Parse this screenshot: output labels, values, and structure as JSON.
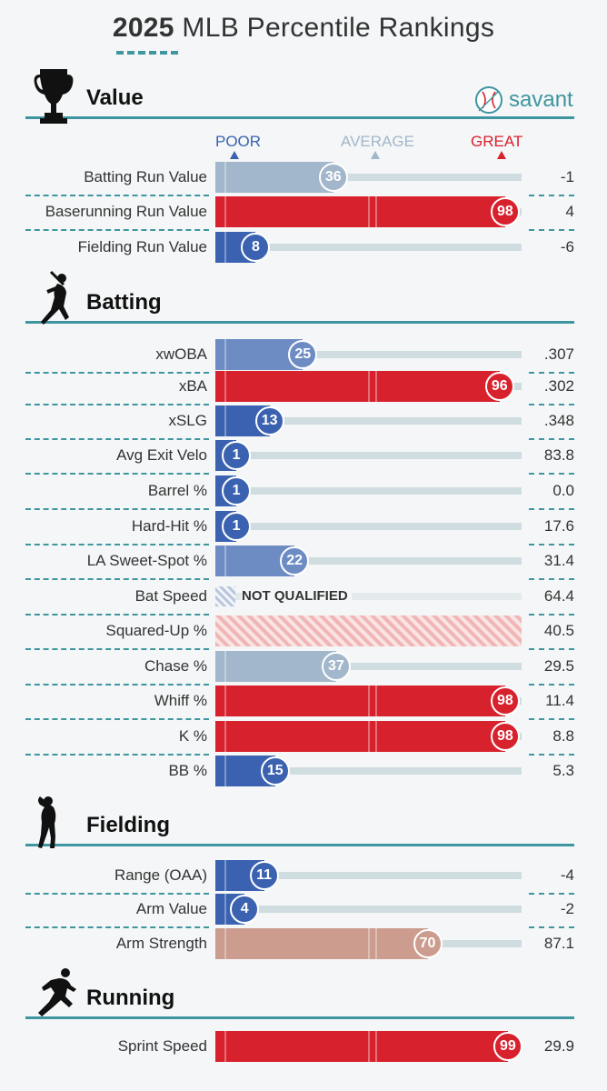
{
  "header": {
    "title_year": "2025",
    "title_rest": " MLB Percentile Rankings",
    "brand": "savant"
  },
  "scale": {
    "poor": "POOR",
    "average": "AVERAGE",
    "great": "GREAT"
  },
  "colors": {
    "accent": "#3f95a0",
    "great": "#d7222e",
    "poor": "#3a62b0",
    "below_avg_mid": "#6e8cc4",
    "near_avg": "#a2b7cb",
    "above_avg": "#cc9c8e",
    "track": "#cfdde0"
  },
  "chart_data": {
    "type": "bar",
    "title": "2025 MLB Percentile Rankings",
    "xlim": [
      0,
      100
    ],
    "sections": [
      {
        "name": "Value",
        "icon": "trophy-icon",
        "metrics": [
          {
            "label": "Batting Run Value",
            "percentile": 36,
            "value": "-1"
          },
          {
            "label": "Baserunning Run Value",
            "percentile": 98,
            "value": "4"
          },
          {
            "label": "Fielding Run Value",
            "percentile": 8,
            "value": "-6"
          }
        ]
      },
      {
        "name": "Batting",
        "icon": "batter-icon",
        "metrics": [
          {
            "label": "xwOBA",
            "percentile": 25,
            "value": ".307"
          },
          {
            "label": "xBA",
            "percentile": 96,
            "value": ".302"
          },
          {
            "label": "xSLG",
            "percentile": 13,
            "value": ".348"
          },
          {
            "label": "Avg Exit Velo",
            "percentile": 1,
            "value": "83.8"
          },
          {
            "label": "Barrel %",
            "percentile": 1,
            "value": "0.0"
          },
          {
            "label": "Hard-Hit %",
            "percentile": 1,
            "value": "17.6"
          },
          {
            "label": "LA Sweet-Spot %",
            "percentile": 22,
            "value": "31.4"
          },
          {
            "label": "Bat Speed",
            "percentile": null,
            "status": "NOT QUALIFIED",
            "value": "64.4"
          },
          {
            "label": "Squared-Up %",
            "percentile": null,
            "status": "hatched",
            "value": "40.5"
          },
          {
            "label": "Chase %",
            "percentile": 37,
            "value": "29.5"
          },
          {
            "label": "Whiff %",
            "percentile": 98,
            "value": "11.4"
          },
          {
            "label": "K %",
            "percentile": 98,
            "value": "8.8"
          },
          {
            "label": "BB %",
            "percentile": 15,
            "value": "5.3"
          }
        ]
      },
      {
        "name": "Fielding",
        "icon": "fielder-icon",
        "metrics": [
          {
            "label": "Range (OAA)",
            "percentile": 11,
            "value": "-4"
          },
          {
            "label": "Arm Value",
            "percentile": 4,
            "value": "-2"
          },
          {
            "label": "Arm Strength",
            "percentile": 70,
            "value": "87.1"
          }
        ]
      },
      {
        "name": "Running",
        "icon": "runner-icon",
        "metrics": [
          {
            "label": "Sprint Speed",
            "percentile": 99,
            "value": "29.9"
          }
        ]
      }
    ]
  }
}
